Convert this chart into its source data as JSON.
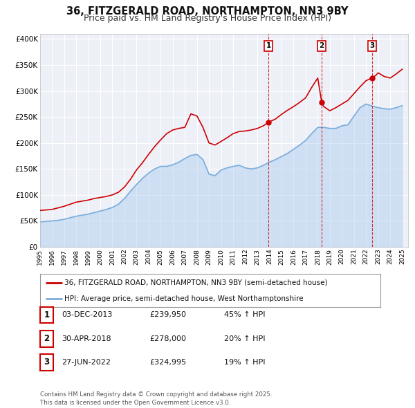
{
  "title": "36, FITZGERALD ROAD, NORTHAMPTON, NN3 9BY",
  "subtitle": "Price paid vs. HM Land Registry's House Price Index (HPI)",
  "title_fontsize": 10.5,
  "subtitle_fontsize": 9,
  "background_color": "#ffffff",
  "plot_bg_color": "#eef0f8",
  "grid_color": "#ffffff",
  "ylim": [
    0,
    410000
  ],
  "xlim_start": 1995,
  "xlim_end": 2025.5,
  "yticks": [
    0,
    50000,
    100000,
    150000,
    200000,
    250000,
    300000,
    350000,
    400000
  ],
  "ytick_labels": [
    "£0",
    "£50K",
    "£100K",
    "£150K",
    "£200K",
    "£250K",
    "£300K",
    "£350K",
    "£400K"
  ],
  "house_color": "#cc0000",
  "hpi_color": "#7aaddb",
  "hpi_fill_color": "#aaccee",
  "vline_color": "#cc0000",
  "sale1_x": 2013.92,
  "sale1_y": 239950,
  "sale2_x": 2018.33,
  "sale2_y": 278000,
  "sale3_x": 2022.49,
  "sale3_y": 324995,
  "legend_label_house": "36, FITZGERALD ROAD, NORTHAMPTON, NN3 9BY (semi-detached house)",
  "legend_label_hpi": "HPI: Average price, semi-detached house, West Northamptonshire",
  "table_rows": [
    [
      "1",
      "03-DEC-2013",
      "£239,950",
      "45% ↑ HPI"
    ],
    [
      "2",
      "30-APR-2018",
      "£278,000",
      "20% ↑ HPI"
    ],
    [
      "3",
      "27-JUN-2022",
      "£324,995",
      "19% ↑ HPI"
    ]
  ],
  "footer": "Contains HM Land Registry data © Crown copyright and database right 2025.\nThis data is licensed under the Open Government Licence v3.0.",
  "house_x": [
    1995.0,
    1995.5,
    1996.0,
    1996.5,
    1997.0,
    1997.5,
    1998.0,
    1998.5,
    1999.0,
    1999.5,
    2000.0,
    2000.5,
    2001.0,
    2001.5,
    2002.0,
    2002.5,
    2003.0,
    2003.5,
    2004.0,
    2004.5,
    2005.0,
    2005.5,
    2006.0,
    2006.5,
    2007.0,
    2007.5,
    2008.0,
    2008.5,
    2009.0,
    2009.5,
    2010.0,
    2010.5,
    2011.0,
    2011.5,
    2012.0,
    2012.5,
    2013.0,
    2013.5,
    2013.92,
    2014.5,
    2015.0,
    2015.5,
    2016.0,
    2016.5,
    2017.0,
    2017.5,
    2018.0,
    2018.33,
    2018.5,
    2019.0,
    2019.5,
    2020.0,
    2020.5,
    2021.0,
    2021.5,
    2022.0,
    2022.49,
    2022.8,
    2023.0,
    2023.5,
    2024.0,
    2024.5,
    2025.0
  ],
  "house_y": [
    70000,
    71000,
    72000,
    75000,
    78000,
    82000,
    86000,
    88000,
    90000,
    93000,
    95000,
    97000,
    100000,
    105000,
    115000,
    130000,
    148000,
    162000,
    178000,
    193000,
    206000,
    218000,
    225000,
    228000,
    230000,
    256000,
    252000,
    230000,
    200000,
    196000,
    203000,
    210000,
    218000,
    222000,
    223000,
    225000,
    228000,
    233000,
    239950,
    246000,
    255000,
    263000,
    270000,
    278000,
    287000,
    307000,
    325000,
    278000,
    270000,
    262000,
    268000,
    275000,
    282000,
    295000,
    308000,
    320000,
    324995,
    330000,
    335000,
    328000,
    325000,
    333000,
    342000
  ],
  "hpi_x": [
    1995.0,
    1995.5,
    1996.0,
    1996.5,
    1997.0,
    1997.5,
    1998.0,
    1998.5,
    1999.0,
    1999.5,
    2000.0,
    2000.5,
    2001.0,
    2001.5,
    2002.0,
    2002.5,
    2003.0,
    2003.5,
    2004.0,
    2004.5,
    2005.0,
    2005.5,
    2006.0,
    2006.5,
    2007.0,
    2007.5,
    2008.0,
    2008.5,
    2009.0,
    2009.5,
    2010.0,
    2010.5,
    2011.0,
    2011.5,
    2012.0,
    2012.5,
    2013.0,
    2013.5,
    2014.0,
    2014.5,
    2015.0,
    2015.5,
    2016.0,
    2016.5,
    2017.0,
    2017.5,
    2018.0,
    2018.5,
    2019.0,
    2019.5,
    2020.0,
    2020.5,
    2021.0,
    2021.5,
    2022.0,
    2022.5,
    2023.0,
    2023.5,
    2024.0,
    2024.5,
    2025.0
  ],
  "hpi_y": [
    48000,
    49000,
    50000,
    51000,
    53000,
    56000,
    59000,
    61000,
    63000,
    66000,
    69000,
    72000,
    76000,
    82000,
    93000,
    107000,
    120000,
    132000,
    142000,
    150000,
    155000,
    155000,
    158000,
    163000,
    170000,
    176000,
    178000,
    168000,
    140000,
    137000,
    148000,
    152000,
    155000,
    157000,
    152000,
    150000,
    152000,
    157000,
    163000,
    168000,
    174000,
    180000,
    188000,
    196000,
    205000,
    218000,
    230000,
    230000,
    228000,
    228000,
    233000,
    235000,
    252000,
    268000,
    275000,
    271000,
    268000,
    266000,
    265000,
    268000,
    272000
  ]
}
